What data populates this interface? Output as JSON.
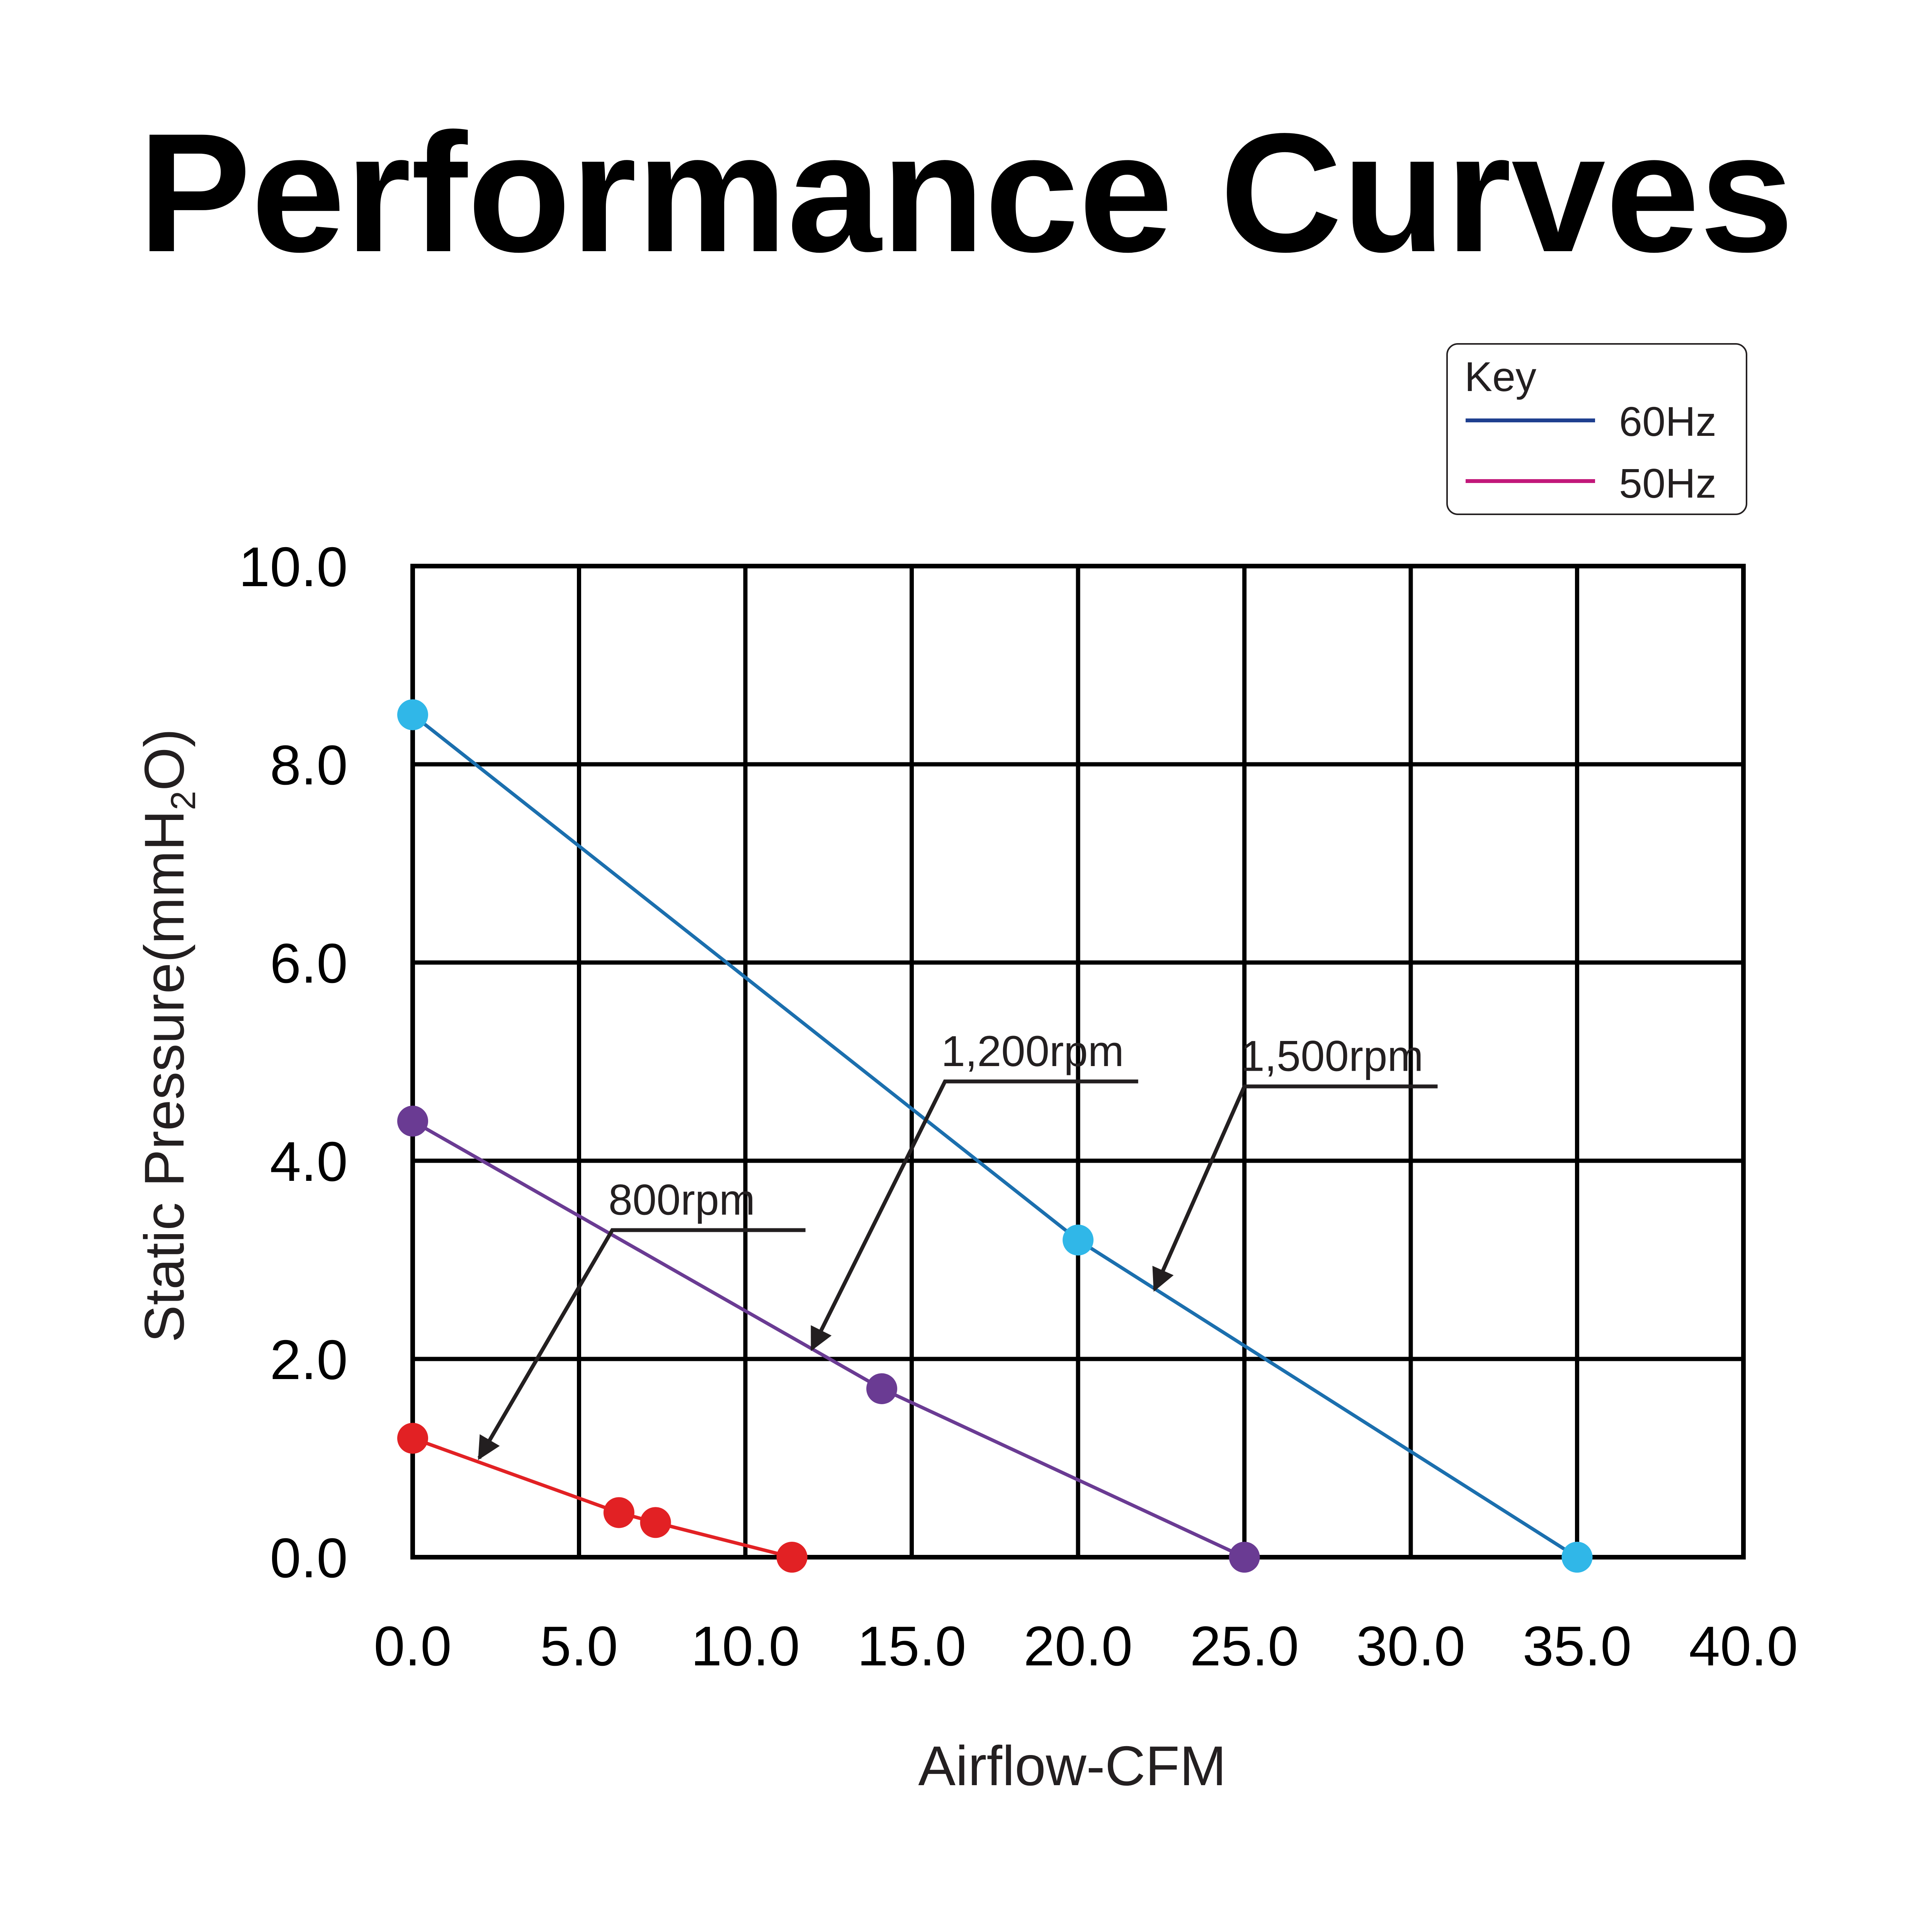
{
  "chart_data": {
    "type": "line",
    "title": "Performance Curves",
    "xlabel": "Airflow-CFM",
    "ylabel": {
      "prefix": "Static Pressure(mmH",
      "subscript": "2",
      "suffix": "O)"
    },
    "xlim": [
      0,
      40
    ],
    "ylim": [
      0,
      10
    ],
    "grid": true,
    "xticks": [
      0,
      5,
      10,
      15,
      20,
      25,
      30,
      35,
      40
    ],
    "xtick_labels": [
      "0.0",
      "5.0",
      "10.0",
      "15.0",
      "20.0",
      "25.0",
      "30.0",
      "35.0",
      "40.0"
    ],
    "yticks": [
      0,
      2,
      4,
      6,
      8,
      10
    ],
    "ytick_labels": [
      "0.0",
      "2.0",
      "4.0",
      "6.0",
      "8.0",
      "10.0"
    ],
    "legend": {
      "placement": "top-right",
      "title": "Key",
      "entries": [
        {
          "label": "60Hz",
          "color": "#1f3f8f"
        },
        {
          "label": "50Hz",
          "color": "#c2187a"
        }
      ]
    },
    "series": [
      {
        "name": "1,500rpm",
        "line_color": "#1b6fae",
        "marker_color": "#30b7e8",
        "points": [
          {
            "x": 0,
            "y": 8.5
          },
          {
            "x": 20,
            "y": 3.2
          },
          {
            "x": 35,
            "y": 0
          }
        ]
      },
      {
        "name": "1,200rpm",
        "line_color": "#6a3b93",
        "marker_color": "#6a3b93",
        "points": [
          {
            "x": 0,
            "y": 4.4
          },
          {
            "x": 14.1,
            "y": 1.7
          },
          {
            "x": 25,
            "y": 0
          }
        ]
      },
      {
        "name": "800rpm",
        "line_color": "#e22124",
        "marker_color": "#e22124",
        "points": [
          {
            "x": 0,
            "y": 1.2
          },
          {
            "x": 6.2,
            "y": 0.45
          },
          {
            "x": 7.3,
            "y": 0.35
          },
          {
            "x": 11.4,
            "y": 0
          }
        ]
      }
    ],
    "annotations": [
      {
        "label": "1,500rpm",
        "label_at": {
          "x": 25,
          "y": 4.75
        },
        "points_to": {
          "x": 22.3,
          "y": 2.7
        }
      },
      {
        "label": "1,200rpm",
        "label_at": {
          "x": 16,
          "y": 4.8
        },
        "points_to": {
          "x": 12,
          "y": 2.1
        }
      },
      {
        "label": "800rpm",
        "label_at": {
          "x": 6,
          "y": 3.3
        },
        "points_to": {
          "x": 2,
          "y": 1
        }
      }
    ]
  }
}
